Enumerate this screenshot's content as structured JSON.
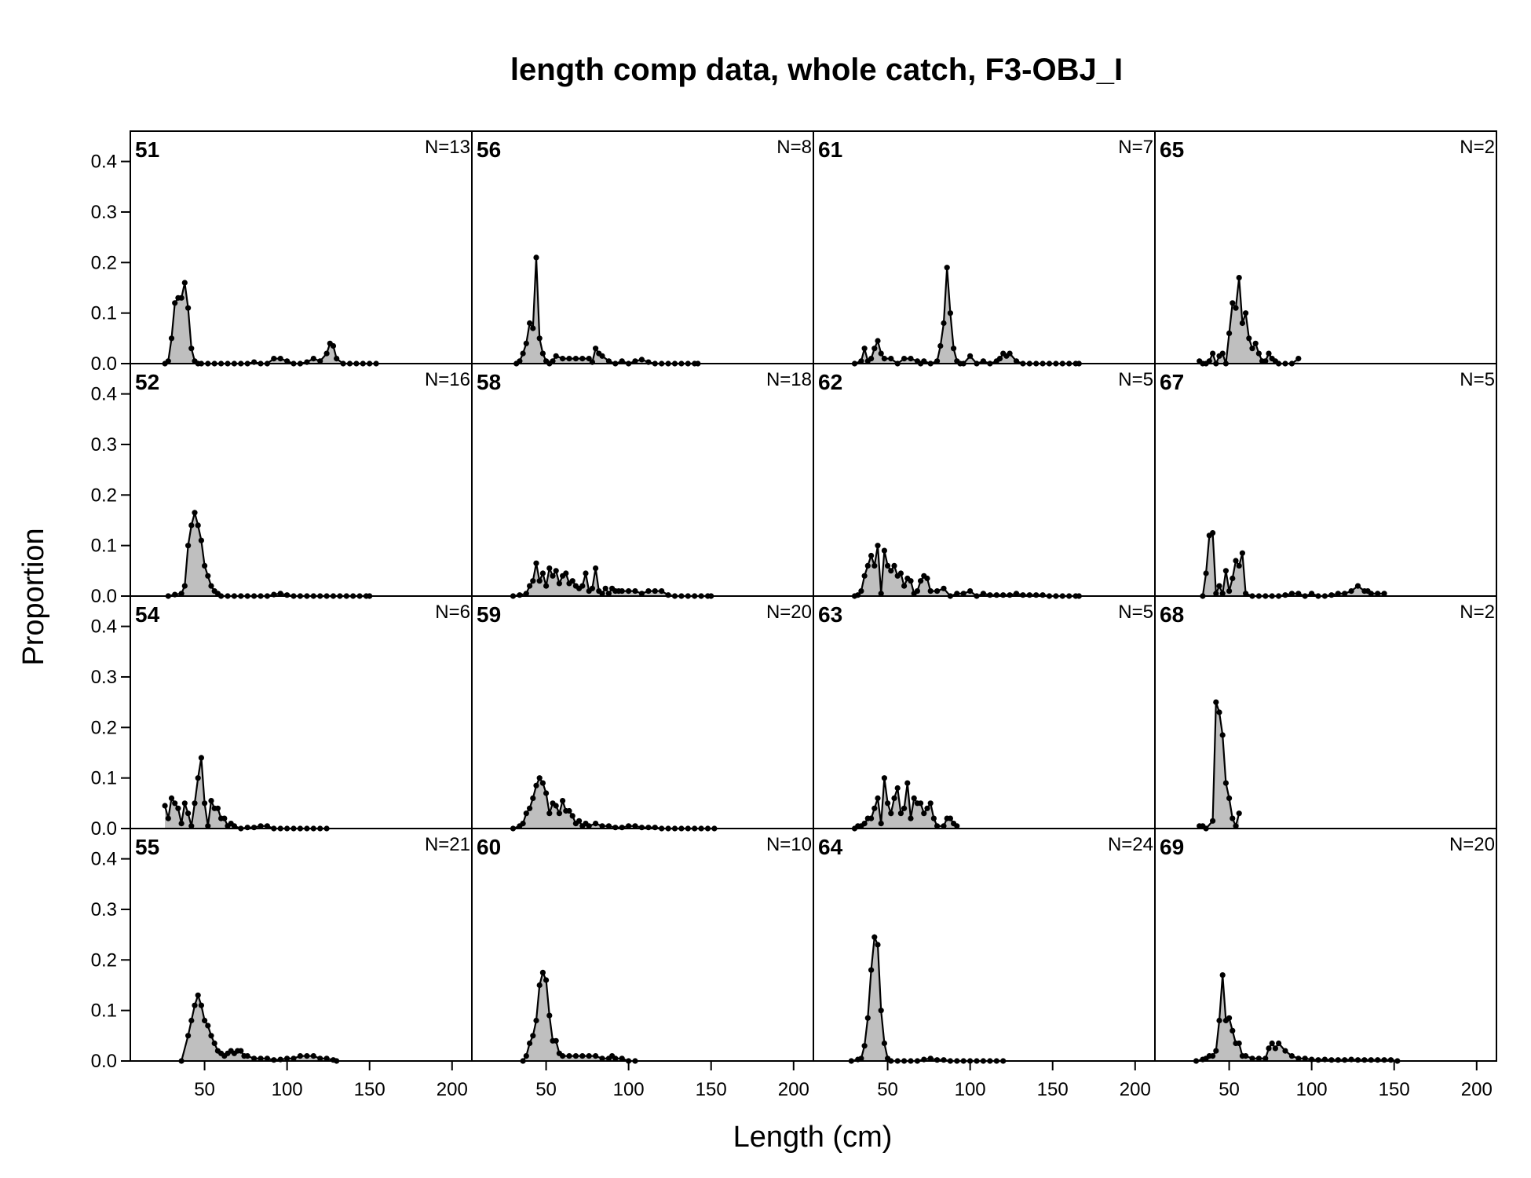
{
  "chart_data": {
    "type": "area",
    "title": "length comp data, whole catch, F3-OBJ_I",
    "xlabel": "Length (cm)",
    "ylabel": "Proportion",
    "xlim": [
      5,
      212
    ],
    "ylim": [
      0,
      0.46
    ],
    "x_ticks": [
      "50",
      "100",
      "150",
      "200"
    ],
    "y_ticks": [
      "0.0",
      "0.1",
      "0.2",
      "0.3",
      "0.4"
    ],
    "fill_color": "#bfbfbf",
    "line_color": "#000000",
    "panels": [
      {
        "label": "51",
        "n": "N=13",
        "x": [
          26,
          28,
          30,
          32,
          34,
          36,
          38,
          40,
          42,
          44,
          46,
          48,
          52,
          56,
          60,
          64,
          68,
          72,
          76,
          80,
          84,
          88,
          92,
          96,
          100,
          104,
          108,
          112,
          116,
          120,
          124,
          126,
          128,
          130,
          134,
          138,
          142,
          146,
          150,
          154
        ],
        "y": [
          0,
          0.005,
          0.05,
          0.12,
          0.13,
          0.13,
          0.16,
          0.11,
          0.03,
          0.005,
          0,
          0,
          0,
          0,
          0,
          0,
          0,
          0,
          0,
          0.003,
          0,
          0,
          0.01,
          0.01,
          0.005,
          0,
          0,
          0.003,
          0.01,
          0.005,
          0.02,
          0.04,
          0.035,
          0.01,
          0,
          0,
          0,
          0,
          0,
          0
        ]
      },
      {
        "label": "56",
        "n": "N=8",
        "x": [
          32,
          34,
          36,
          38,
          40,
          42,
          44,
          46,
          48,
          50,
          52,
          54,
          56,
          60,
          64,
          68,
          72,
          76,
          78,
          80,
          82,
          84,
          88,
          92,
          96,
          100,
          104,
          108,
          112,
          116,
          120,
          124,
          128,
          132,
          136,
          140,
          142
        ],
        "y": [
          0,
          0.005,
          0.02,
          0.04,
          0.08,
          0.07,
          0.21,
          0.05,
          0.02,
          0.005,
          0,
          0.005,
          0.015,
          0.01,
          0.01,
          0.01,
          0.01,
          0.01,
          0.003,
          0.03,
          0.02,
          0.015,
          0.005,
          0,
          0.005,
          0,
          0.005,
          0.008,
          0.003,
          0,
          0,
          0,
          0,
          0,
          0,
          0,
          0
        ]
      },
      {
        "label": "61",
        "n": "N=7",
        "x": [
          30,
          34,
          36,
          38,
          40,
          42,
          44,
          46,
          48,
          52,
          56,
          60,
          64,
          68,
          70,
          72,
          76,
          80,
          82,
          84,
          86,
          88,
          90,
          92,
          94,
          96,
          100,
          104,
          108,
          112,
          116,
          118,
          120,
          122,
          124,
          128,
          132,
          136,
          140,
          144,
          148,
          152,
          156,
          160,
          164,
          166
        ],
        "y": [
          0,
          0.005,
          0.03,
          0.005,
          0.01,
          0.03,
          0.045,
          0.02,
          0.01,
          0.01,
          0,
          0.01,
          0.01,
          0.005,
          0,
          0.005,
          0,
          0.005,
          0.035,
          0.08,
          0.19,
          0.1,
          0.03,
          0.005,
          0,
          0,
          0.015,
          0,
          0.005,
          0,
          0.005,
          0.01,
          0.02,
          0.015,
          0.02,
          0.005,
          0,
          0,
          0,
          0,
          0,
          0,
          0,
          0,
          0,
          0
        ]
      },
      {
        "label": "65",
        "n": "N=2",
        "x": [
          32,
          34,
          36,
          38,
          40,
          42,
          44,
          46,
          48,
          50,
          52,
          54,
          56,
          58,
          60,
          62,
          64,
          66,
          68,
          70,
          72,
          74,
          76,
          78,
          80,
          84,
          88,
          92
        ],
        "y": [
          0.005,
          0,
          0,
          0.005,
          0.02,
          0,
          0.015,
          0.02,
          0,
          0.06,
          0.12,
          0.11,
          0.17,
          0.08,
          0.1,
          0.05,
          0.03,
          0.04,
          0.02,
          0.005,
          0.005,
          0.02,
          0.01,
          0.005,
          0,
          0,
          0,
          0.01
        ]
      },
      {
        "label": "52",
        "n": "N=16",
        "x": [
          28,
          32,
          36,
          38,
          40,
          42,
          44,
          46,
          48,
          50,
          52,
          54,
          56,
          58,
          60,
          64,
          68,
          72,
          76,
          80,
          84,
          88,
          92,
          96,
          100,
          104,
          108,
          112,
          116,
          120,
          124,
          128,
          132,
          136,
          140,
          144,
          148,
          150
        ],
        "y": [
          0,
          0.003,
          0.005,
          0.02,
          0.1,
          0.14,
          0.165,
          0.14,
          0.11,
          0.06,
          0.04,
          0.02,
          0.01,
          0.005,
          0,
          0,
          0,
          0,
          0,
          0,
          0,
          0,
          0.003,
          0.005,
          0.002,
          0,
          0,
          0,
          0,
          0,
          0,
          0,
          0,
          0,
          0,
          0,
          0,
          0
        ]
      },
      {
        "label": "58",
        "n": "N=18",
        "x": [
          30,
          34,
          38,
          40,
          42,
          44,
          46,
          48,
          50,
          52,
          54,
          56,
          58,
          60,
          62,
          64,
          66,
          68,
          70,
          72,
          74,
          76,
          78,
          80,
          82,
          84,
          86,
          88,
          90,
          92,
          94,
          96,
          100,
          104,
          108,
          112,
          116,
          120,
          124,
          128,
          132,
          136,
          140,
          144,
          148,
          150
        ],
        "y": [
          0,
          0.002,
          0.005,
          0.02,
          0.03,
          0.065,
          0.03,
          0.045,
          0.02,
          0.055,
          0.04,
          0.05,
          0.025,
          0.04,
          0.045,
          0.025,
          0.03,
          0.02,
          0.015,
          0.02,
          0.045,
          0.01,
          0.015,
          0.055,
          0.01,
          0.005,
          0.015,
          0.005,
          0.015,
          0.01,
          0.01,
          0.01,
          0.01,
          0.01,
          0.005,
          0.01,
          0.01,
          0.01,
          0.002,
          0,
          0,
          0,
          0,
          0,
          0,
          0
        ]
      },
      {
        "label": "62",
        "n": "N=5",
        "x": [
          30,
          32,
          34,
          36,
          38,
          40,
          42,
          44,
          46,
          48,
          50,
          52,
          54,
          56,
          58,
          60,
          62,
          64,
          66,
          68,
          70,
          72,
          74,
          76,
          80,
          84,
          88,
          92,
          96,
          100,
          104,
          108,
          112,
          116,
          120,
          124,
          128,
          132,
          136,
          140,
          144,
          148,
          152,
          156,
          160,
          164,
          166
        ],
        "y": [
          0,
          0.002,
          0.01,
          0.04,
          0.06,
          0.08,
          0.06,
          0.1,
          0.005,
          0.09,
          0.06,
          0.05,
          0.06,
          0.04,
          0.045,
          0.02,
          0.035,
          0.03,
          0.005,
          0.01,
          0.03,
          0.04,
          0.035,
          0.01,
          0.01,
          0.015,
          0,
          0.005,
          0.005,
          0.01,
          0,
          0.005,
          0.002,
          0.002,
          0.002,
          0.002,
          0.005,
          0.002,
          0.002,
          0.002,
          0.002,
          0,
          0,
          0,
          0,
          0,
          0
        ]
      },
      {
        "label": "67",
        "n": "N=5",
        "x": [
          34,
          36,
          38,
          40,
          42,
          44,
          46,
          48,
          50,
          52,
          54,
          56,
          58,
          60,
          64,
          68,
          72,
          76,
          80,
          84,
          88,
          92,
          96,
          100,
          104,
          108,
          112,
          116,
          120,
          124,
          128,
          132,
          134,
          136,
          140,
          144
        ],
        "y": [
          0,
          0.045,
          0.12,
          0.125,
          0.005,
          0.02,
          0.005,
          0.05,
          0.01,
          0.035,
          0.07,
          0.06,
          0.085,
          0.005,
          0,
          0,
          0,
          0,
          0,
          0.002,
          0.005,
          0.005,
          0,
          0.005,
          0,
          0,
          0.002,
          0.005,
          0.005,
          0.01,
          0.02,
          0.01,
          0.01,
          0.005,
          0.005,
          0.005
        ]
      },
      {
        "label": "54",
        "n": "N=6",
        "x": [
          26,
          28,
          30,
          32,
          34,
          36,
          38,
          40,
          42,
          44,
          46,
          48,
          50,
          52,
          54,
          56,
          58,
          60,
          62,
          64,
          66,
          68,
          72,
          76,
          80,
          84,
          88,
          92,
          96,
          100,
          104,
          108,
          112,
          116,
          120,
          124
        ],
        "y": [
          0.045,
          0.02,
          0.06,
          0.05,
          0.04,
          0.01,
          0.05,
          0.03,
          0.005,
          0.05,
          0.1,
          0.14,
          0.05,
          0.005,
          0.055,
          0.04,
          0.04,
          0.02,
          0.02,
          0.005,
          0.01,
          0.005,
          0,
          0.002,
          0.002,
          0.005,
          0.005,
          0,
          0,
          0,
          0,
          0,
          0,
          0,
          0,
          0
        ]
      },
      {
        "label": "59",
        "n": "N=20",
        "x": [
          30,
          34,
          36,
          38,
          40,
          42,
          44,
          46,
          48,
          50,
          52,
          54,
          56,
          58,
          60,
          62,
          64,
          66,
          68,
          70,
          72,
          74,
          76,
          80,
          84,
          88,
          92,
          96,
          100,
          104,
          108,
          112,
          116,
          120,
          124,
          128,
          132,
          136,
          140,
          144,
          148,
          152
        ],
        "y": [
          0,
          0.005,
          0.01,
          0.03,
          0.04,
          0.06,
          0.085,
          0.1,
          0.09,
          0.07,
          0.03,
          0.05,
          0.045,
          0.03,
          0.055,
          0.035,
          0.035,
          0.025,
          0.01,
          0.015,
          0.005,
          0.01,
          0.005,
          0.01,
          0.005,
          0.005,
          0.002,
          0.002,
          0.005,
          0.005,
          0.002,
          0.002,
          0.002,
          0,
          0,
          0,
          0,
          0,
          0,
          0,
          0,
          0
        ]
      },
      {
        "label": "63",
        "n": "N=5",
        "x": [
          30,
          32,
          34,
          36,
          38,
          40,
          42,
          44,
          46,
          48,
          50,
          52,
          54,
          56,
          58,
          60,
          62,
          64,
          66,
          68,
          70,
          72,
          74,
          76,
          78,
          80,
          84,
          86,
          88,
          90,
          92
        ],
        "y": [
          0,
          0.005,
          0.005,
          0.01,
          0.02,
          0.02,
          0.04,
          0.06,
          0.01,
          0.1,
          0.05,
          0.03,
          0.06,
          0.08,
          0.03,
          0.04,
          0.09,
          0.02,
          0.06,
          0.05,
          0.05,
          0.03,
          0.04,
          0.05,
          0.02,
          0.005,
          0.005,
          0.02,
          0.02,
          0.01,
          0.005
        ]
      },
      {
        "label": "68",
        "n": "N=2",
        "x": [
          32,
          34,
          36,
          40,
          42,
          44,
          46,
          48,
          50,
          52,
          54,
          56
        ],
        "y": [
          0.005,
          0.005,
          0,
          0.015,
          0.25,
          0.23,
          0.185,
          0.09,
          0.06,
          0.02,
          0.005,
          0.03
        ]
      },
      {
        "label": "55",
        "n": "N=21",
        "x": [
          36,
          40,
          42,
          44,
          46,
          48,
          50,
          52,
          54,
          56,
          58,
          60,
          62,
          64,
          66,
          68,
          70,
          72,
          74,
          76,
          80,
          84,
          88,
          92,
          96,
          100,
          104,
          108,
          112,
          116,
          120,
          124,
          128,
          130
        ],
        "y": [
          0,
          0.05,
          0.08,
          0.11,
          0.13,
          0.11,
          0.08,
          0.07,
          0.05,
          0.035,
          0.02,
          0.015,
          0.01,
          0.015,
          0.02,
          0.015,
          0.02,
          0.02,
          0.01,
          0.01,
          0.005,
          0.005,
          0.005,
          0.002,
          0.003,
          0.005,
          0.005,
          0.01,
          0.01,
          0.01,
          0.005,
          0.005,
          0.002,
          0
        ]
      },
      {
        "label": "60",
        "n": "N=10",
        "x": [
          36,
          38,
          40,
          42,
          44,
          46,
          48,
          50,
          52,
          54,
          56,
          58,
          60,
          64,
          68,
          72,
          76,
          80,
          84,
          88,
          90,
          92,
          96,
          100,
          104
        ],
        "y": [
          0,
          0.01,
          0.035,
          0.05,
          0.08,
          0.15,
          0.175,
          0.16,
          0.09,
          0.04,
          0.04,
          0.015,
          0.01,
          0.01,
          0.01,
          0.01,
          0.01,
          0.01,
          0.005,
          0.005,
          0.01,
          0.005,
          0.005,
          0,
          0
        ]
      },
      {
        "label": "64",
        "n": "N=24",
        "x": [
          28,
          32,
          34,
          36,
          38,
          40,
          42,
          44,
          46,
          48,
          50,
          52,
          56,
          60,
          64,
          68,
          72,
          76,
          80,
          84,
          88,
          92,
          96,
          100,
          104,
          108,
          112,
          116,
          120
        ],
        "y": [
          0,
          0.003,
          0.005,
          0.03,
          0.085,
          0.18,
          0.245,
          0.23,
          0.1,
          0.035,
          0.005,
          0,
          0,
          0,
          0,
          0,
          0.003,
          0.005,
          0.002,
          0.002,
          0,
          0,
          0,
          0,
          0,
          0,
          0,
          0,
          0
        ]
      },
      {
        "label": "69",
        "n": "N=20",
        "x": [
          30,
          34,
          36,
          38,
          40,
          42,
          44,
          46,
          48,
          50,
          52,
          54,
          56,
          58,
          60,
          64,
          68,
          72,
          74,
          76,
          78,
          80,
          84,
          88,
          92,
          96,
          100,
          104,
          108,
          112,
          116,
          120,
          124,
          128,
          132,
          136,
          140,
          144,
          148,
          152
        ],
        "y": [
          0,
          0.003,
          0.005,
          0.01,
          0.01,
          0.02,
          0.08,
          0.17,
          0.08,
          0.085,
          0.06,
          0.035,
          0.035,
          0.01,
          0.01,
          0.005,
          0.005,
          0.005,
          0.025,
          0.035,
          0.025,
          0.035,
          0.02,
          0.01,
          0.005,
          0.005,
          0.003,
          0.002,
          0.003,
          0.002,
          0.002,
          0.002,
          0.003,
          0.002,
          0.002,
          0.002,
          0.002,
          0.002,
          0.002,
          0
        ]
      }
    ]
  }
}
